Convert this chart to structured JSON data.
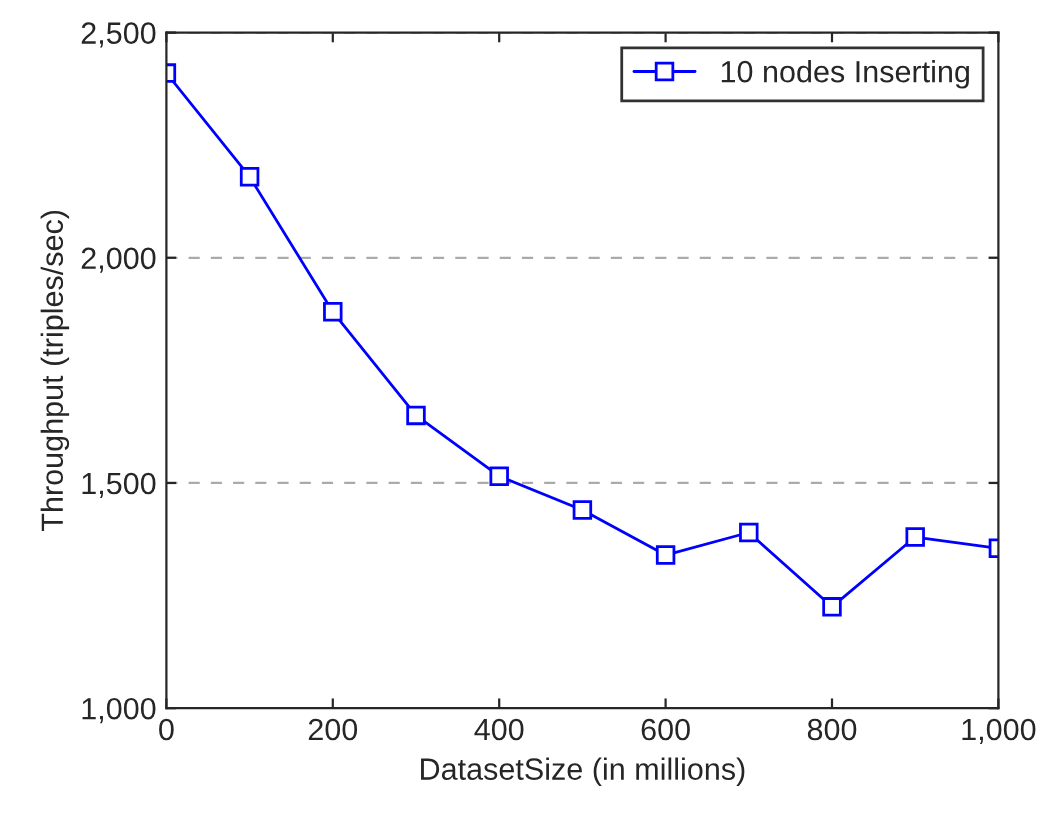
{
  "chart_data": {
    "type": "line",
    "xlabel": "DatasetSize (in millions)",
    "ylabel": "Throughput (triples/sec)",
    "x": [
      0,
      100,
      200,
      300,
      400,
      500,
      600,
      700,
      800,
      900,
      1000
    ],
    "series": [
      {
        "name": "10 nodes Inserting",
        "color": "#0000ff",
        "values": [
          2410,
          2180,
          1880,
          1650,
          1515,
          1440,
          1340,
          1390,
          1225,
          1380,
          1355
        ]
      }
    ],
    "xlim": [
      0,
      1000
    ],
    "xticks": [
      0,
      {
        "value": 200,
        "label": "200"
      },
      {
        "value": 400,
        "label": "400"
      },
      {
        "value": 600,
        "label": "600"
      },
      {
        "value": 800,
        "label": "800"
      },
      {
        "value": 1000,
        "label": "1,000"
      }
    ],
    "ylim": [
      1000,
      2500
    ],
    "yticks": [
      {
        "value": 1000,
        "label": "1,000"
      },
      {
        "value": 1500,
        "label": "1,500"
      },
      {
        "value": 2000,
        "label": "2,000"
      },
      {
        "value": 2500,
        "label": "2,500"
      }
    ],
    "grid": "y",
    "legend": "top right",
    "marker": "square",
    "line_style": "solid"
  }
}
